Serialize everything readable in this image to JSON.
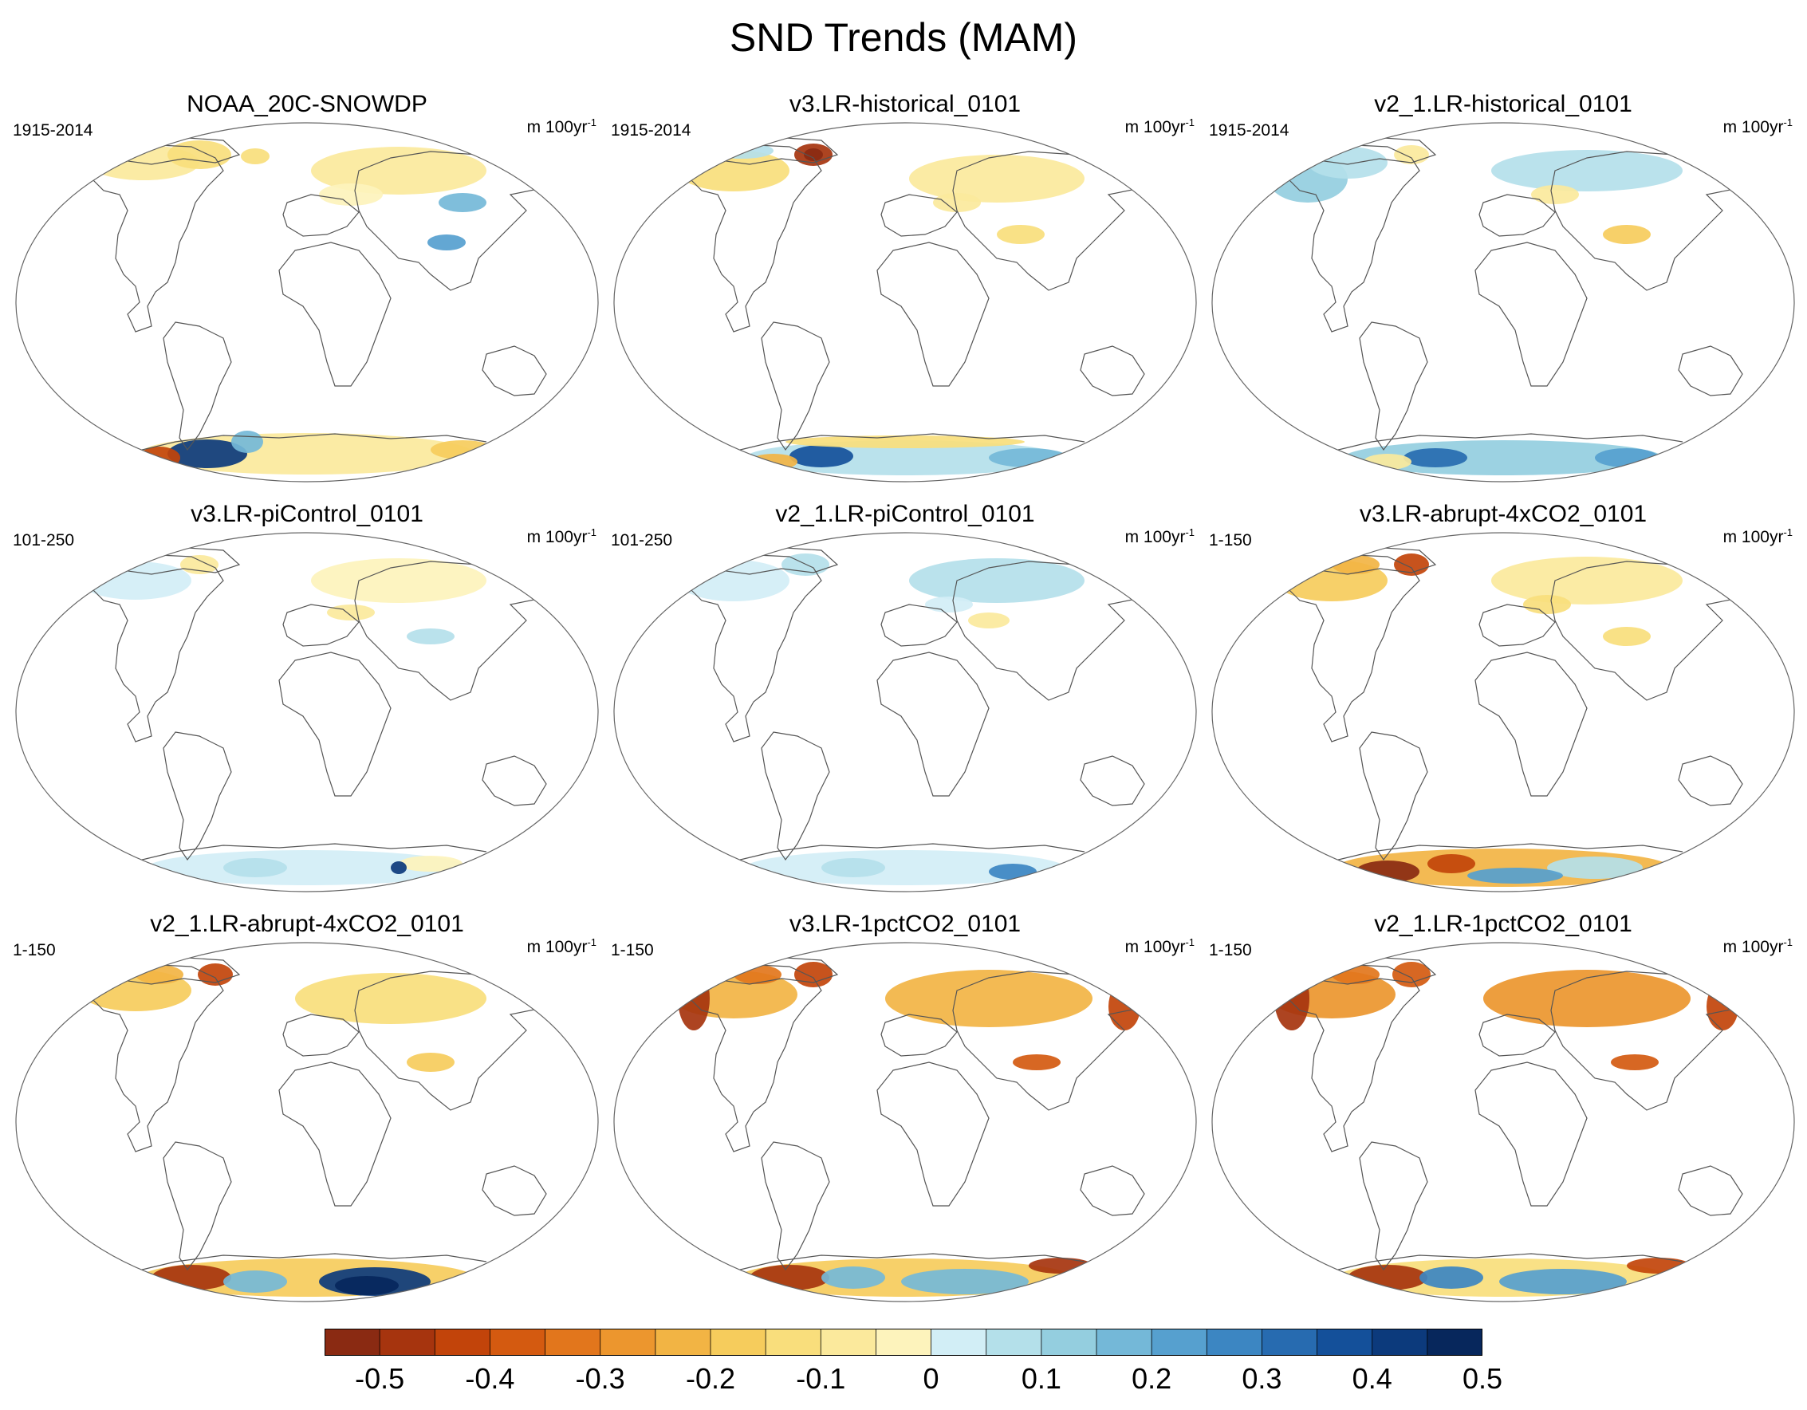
{
  "figure": {
    "title": "SND Trends (MAM)"
  },
  "panels": [
    {
      "title": "NOAA_20C-SNOWDP",
      "period": "1915-2014",
      "units": "m 100yr",
      "units_exp": "-1",
      "pattern": "obs"
    },
    {
      "title": "v3.LR-historical_0101",
      "period": "1915-2014",
      "units": "m 100yr",
      "units_exp": "-1",
      "pattern": "hist3"
    },
    {
      "title": "v2_1.LR-historical_0101",
      "period": "1915-2014",
      "units": "m 100yr",
      "units_exp": "-1",
      "pattern": "hist2"
    },
    {
      "title": "v3.LR-piControl_0101",
      "period": "101-250",
      "units": "m 100yr",
      "units_exp": "-1",
      "pattern": "pi3"
    },
    {
      "title": "v2_1.LR-piControl_0101",
      "period": "101-250",
      "units": "m 100yr",
      "units_exp": "-1",
      "pattern": "pi2"
    },
    {
      "title": "v3.LR-abrupt-4xCO2_0101",
      "period": "1-150",
      "units": "m 100yr",
      "units_exp": "-1",
      "pattern": "abrupt3"
    },
    {
      "title": "v2_1.LR-abrupt-4xCO2_0101",
      "period": "1-150",
      "units": "m 100yr",
      "units_exp": "-1",
      "pattern": "abrupt2"
    },
    {
      "title": "v3.LR-1pctCO2_0101",
      "period": "1-150",
      "units": "m 100yr",
      "units_exp": "-1",
      "pattern": "pct3"
    },
    {
      "title": "v2_1.LR-1pctCO2_0101",
      "period": "1-150",
      "units": "m 100yr",
      "units_exp": "-1",
      "pattern": "pct2"
    }
  ],
  "colorbar": {
    "colors": [
      "#8a2a12",
      "#a6340e",
      "#c2440a",
      "#d45a10",
      "#e2761c",
      "#ec962e",
      "#f2b444",
      "#f6cc5c",
      "#f9de7c",
      "#fbe99c",
      "#fdf3bc",
      "#d2eef6",
      "#b4e0ea",
      "#94cedf",
      "#74b8d8",
      "#56a0cf",
      "#3c86c2",
      "#276bb0",
      "#14509a",
      "#0c3a7c",
      "#07275c"
    ],
    "labels": [
      "-0.5",
      "-0.4",
      "-0.3",
      "-0.2",
      "-0.1",
      "0",
      "0.1",
      "0.2",
      "0.3",
      "0.4",
      "0.5"
    ]
  }
}
